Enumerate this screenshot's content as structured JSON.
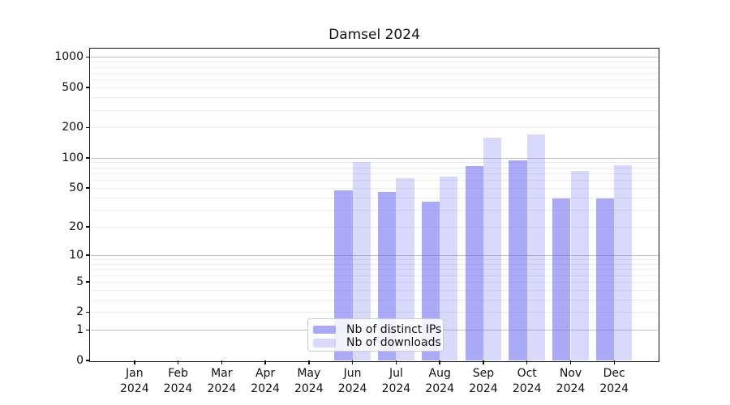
{
  "chart_data": {
    "type": "bar",
    "title": "Damsel 2024",
    "categories": [
      "Jan",
      "Feb",
      "Mar",
      "Apr",
      "May",
      "Jun",
      "Jul",
      "Aug",
      "Sep",
      "Oct",
      "Nov",
      "Dec"
    ],
    "category_year": "2024",
    "series": [
      {
        "name": "Nb of distinct IPs",
        "base_color": "#6e6ef0",
        "alpha": 0.59,
        "values": [
          0,
          0,
          0,
          0,
          0,
          47,
          45,
          36,
          82,
          94,
          39,
          39
        ]
      },
      {
        "name": "Nb of downloads",
        "base_color": "#6e6ef0",
        "alpha": 0.26,
        "values": [
          0,
          0,
          0,
          0,
          0,
          90,
          63,
          65,
          160,
          172,
          74,
          84
        ]
      }
    ],
    "yscale": "log1p",
    "ylim": [
      0,
      1200
    ],
    "y_ticks": [
      0,
      1,
      2,
      5,
      10,
      20,
      50,
      100,
      200,
      500,
      1000
    ],
    "grid": {
      "major_ticks": [
        1,
        10,
        100,
        1000
      ],
      "minor_ticks": [
        2,
        3,
        4,
        5,
        6,
        7,
        8,
        9,
        20,
        30,
        40,
        50,
        60,
        70,
        80,
        90,
        200,
        300,
        400,
        500,
        600,
        700,
        800,
        900
      ]
    },
    "legend": {
      "position": "lower center"
    },
    "colors": {
      "bar_dark_rendered": "#aaaaf8",
      "bar_light_rendered": "#dadafa",
      "grid_minor": "#ebebeb",
      "grid_major": "#bfbfbf",
      "axis": "#111111"
    }
  }
}
